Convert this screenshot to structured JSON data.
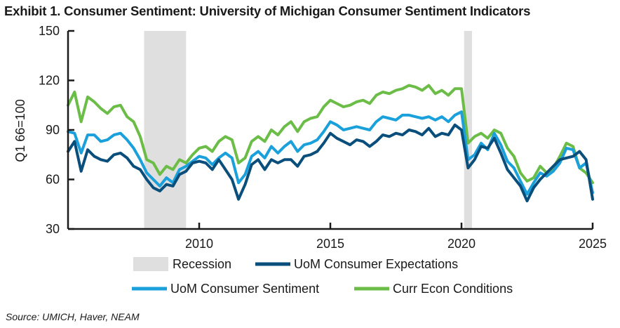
{
  "header": {
    "title": "Exhibit 1. Consumer Sentiment: University of Michigan Consumer Sentiment Indicators"
  },
  "footer": {
    "source": "Source: UMICH, Haver, NEAM"
  },
  "colors": {
    "expectations": "#0a4f7c",
    "sentiment": "#1aa0db",
    "conditions": "#6cbd48",
    "recession": "#dfdfdf",
    "axis": "#1a1a1a"
  },
  "chart_data": {
    "type": "line",
    "title": "Exhibit 1. Consumer Sentiment: University of Michigan Consumer Sentiment Indicators",
    "xlabel": "",
    "ylabel": "Q1 66=100",
    "xlim": [
      2005,
      2025
    ],
    "ylim": [
      30,
      150
    ],
    "x_ticks": [
      2010,
      2015,
      2020,
      2025
    ],
    "y_ticks": [
      30,
      60,
      90,
      120,
      150
    ],
    "grid": false,
    "legend": [
      "Recession",
      "UoM Consumer Expectations",
      "UoM Consumer Sentiment",
      "Curr Econ Conditions"
    ],
    "recessions": [
      [
        2007.9,
        2009.5
      ],
      [
        2020.1,
        2020.4
      ]
    ],
    "x": [
      2005.0,
      2005.25,
      2005.5,
      2005.75,
      2006.0,
      2006.25,
      2006.5,
      2006.75,
      2007.0,
      2007.25,
      2007.5,
      2007.75,
      2008.0,
      2008.25,
      2008.5,
      2008.75,
      2009.0,
      2009.25,
      2009.5,
      2009.75,
      2010.0,
      2010.25,
      2010.5,
      2010.75,
      2011.0,
      2011.25,
      2011.5,
      2011.75,
      2012.0,
      2012.25,
      2012.5,
      2012.75,
      2013.0,
      2013.25,
      2013.5,
      2013.75,
      2014.0,
      2014.25,
      2014.5,
      2014.75,
      2015.0,
      2015.25,
      2015.5,
      2015.75,
      2016.0,
      2016.25,
      2016.5,
      2016.75,
      2017.0,
      2017.25,
      2017.5,
      2017.75,
      2018.0,
      2018.25,
      2018.5,
      2018.75,
      2019.0,
      2019.25,
      2019.5,
      2019.75,
      2020.0,
      2020.25,
      2020.5,
      2020.75,
      2021.0,
      2021.25,
      2021.5,
      2021.75,
      2022.0,
      2022.25,
      2022.5,
      2022.75,
      2023.0,
      2023.25,
      2023.5,
      2023.75,
      2024.0,
      2024.25,
      2024.5,
      2024.75,
      2025.0
    ],
    "series": [
      {
        "name": "UoM Consumer Expectations",
        "values": [
          77,
          83,
          65,
          78,
          74,
          72,
          71,
          75,
          76,
          73,
          68,
          66,
          60,
          55,
          53,
          57,
          56,
          63,
          65,
          70,
          71,
          70,
          66,
          72,
          66,
          60,
          48,
          57,
          69,
          72,
          66,
          72,
          70,
          72,
          72,
          68,
          74,
          75,
          77,
          82,
          88,
          85,
          83,
          81,
          84,
          83,
          80,
          83,
          87,
          86,
          88,
          87,
          90,
          89,
          87,
          91,
          86,
          88,
          87,
          93,
          90,
          67,
          72,
          80,
          79,
          85,
          76,
          66,
          61,
          56,
          47,
          55,
          60,
          64,
          68,
          72,
          73,
          74,
          77,
          72,
          48
        ]
      },
      {
        "name": "UoM Consumer Sentiment",
        "values": [
          89,
          88,
          76,
          87,
          87,
          83,
          84,
          87,
          88,
          84,
          79,
          72,
          64,
          60,
          56,
          61,
          58,
          66,
          68,
          71,
          74,
          73,
          69,
          73,
          76,
          73,
          58,
          63,
          74,
          77,
          73,
          80,
          76,
          80,
          83,
          77,
          81,
          82,
          84,
          89,
          95,
          93,
          90,
          91,
          92,
          91,
          90,
          95,
          98,
          97,
          96,
          99,
          99,
          98,
          97,
          98,
          96,
          98,
          95,
          99,
          101,
          72,
          75,
          82,
          78,
          88,
          81,
          71,
          67,
          59,
          51,
          58,
          64,
          62,
          65,
          70,
          79,
          78,
          67,
          70,
          52
        ]
      },
      {
        "name": "Curr Econ Conditions",
        "values": [
          105,
          113,
          95,
          110,
          107,
          103,
          100,
          104,
          105,
          98,
          95,
          86,
          72,
          70,
          63,
          68,
          66,
          72,
          70,
          75,
          79,
          80,
          77,
          83,
          86,
          84,
          70,
          73,
          83,
          86,
          83,
          90,
          87,
          92,
          95,
          89,
          95,
          97,
          98,
          104,
          108,
          106,
          104,
          105,
          107,
          108,
          106,
          111,
          113,
          112,
          114,
          115,
          117,
          116,
          114,
          117,
          112,
          114,
          111,
          115,
          115,
          82,
          86,
          88,
          85,
          90,
          88,
          79,
          74,
          64,
          59,
          61,
          68,
          64,
          67,
          74,
          82,
          80,
          67,
          64,
          58
        ]
      }
    ]
  }
}
